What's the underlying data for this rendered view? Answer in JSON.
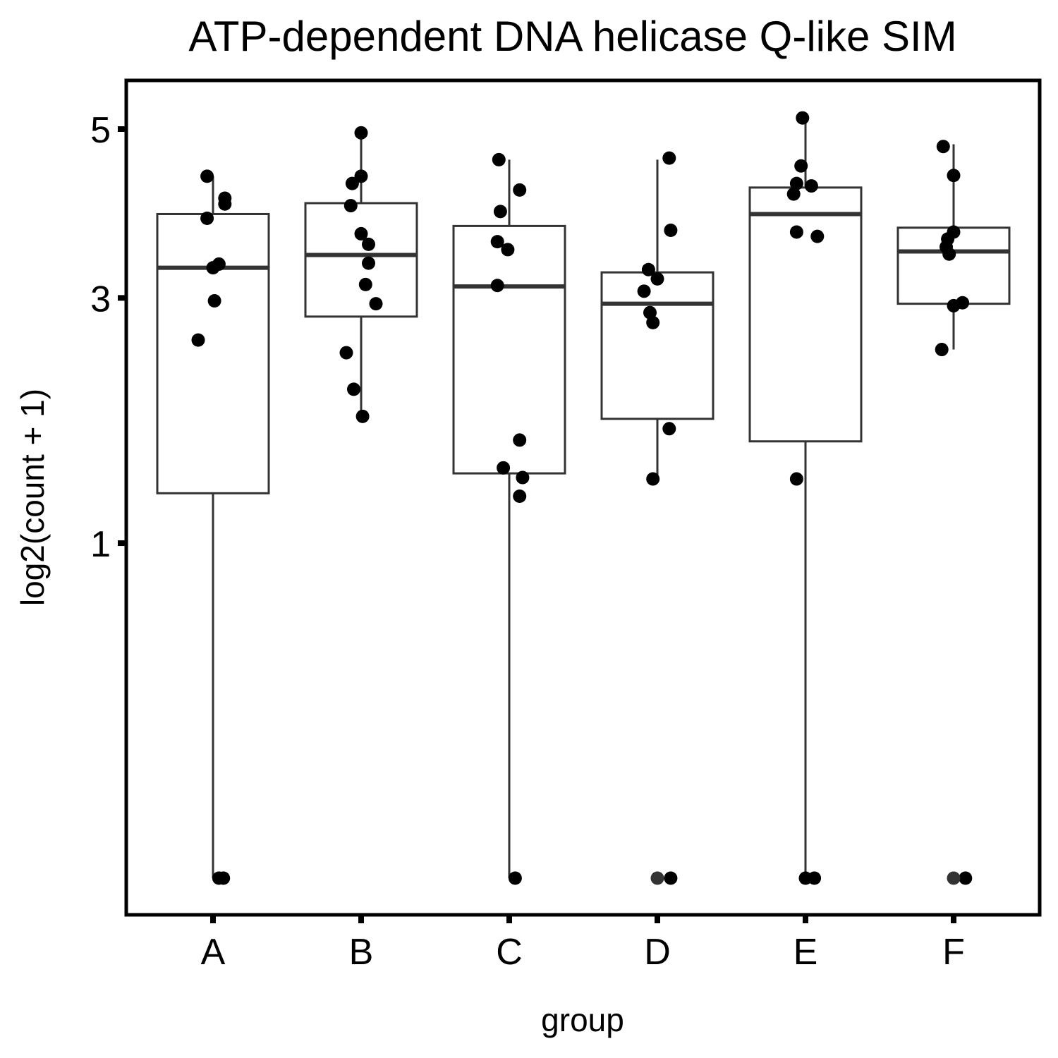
{
  "chart_data": {
    "type": "box",
    "title": "ATP-dependent DNA helicase Q-like SIM",
    "xlabel": "group",
    "ylabel": "log2(count + 1)",
    "y_scale": "sqrt",
    "ylim": [
      0.0,
      5.45
    ],
    "y_ticks": [
      1,
      3,
      5
    ],
    "categories": [
      "A",
      "B",
      "C",
      "D",
      "E",
      "F"
    ],
    "grid": false,
    "legend": "none",
    "colors": {
      "box_line": "#333333",
      "point": "#000000",
      "outlier": "#333333",
      "background": "#ffffff"
    },
    "boxes": [
      {
        "group": "A",
        "lower_whisker": 0.0,
        "q1": 1.32,
        "median": 3.32,
        "q3": 3.93,
        "upper_whisker": 4.39
      },
      {
        "group": "B",
        "lower_whisker": 1.9,
        "q1": 2.81,
        "median": 3.46,
        "q3": 4.06,
        "upper_whisker": 4.95
      },
      {
        "group": "C",
        "lower_whisker": 0.0,
        "q1": 1.46,
        "median": 3.12,
        "q3": 3.79,
        "upper_whisker": 4.6
      },
      {
        "group": "D",
        "lower_whisker": 1.4,
        "q1": 1.88,
        "median": 2.94,
        "q3": 3.27,
        "upper_whisker": 4.6
      },
      {
        "group": "E",
        "lower_whisker": 0.0,
        "q1": 1.7,
        "median": 3.93,
        "q3": 4.25,
        "upper_whisker": 5.15
      },
      {
        "group": "F",
        "lower_whisker": 2.49,
        "q1": 2.94,
        "median": 3.5,
        "q3": 3.77,
        "upper_whisker": 4.8
      }
    ],
    "points": [
      {
        "group": "A",
        "jitter": -0.04,
        "y": 4.39
      },
      {
        "group": "A",
        "jitter": 0.08,
        "y": 4.12
      },
      {
        "group": "A",
        "jitter": 0.08,
        "y": 4.05
      },
      {
        "group": "A",
        "jitter": -0.04,
        "y": 3.88
      },
      {
        "group": "A",
        "jitter": 0.04,
        "y": 3.36
      },
      {
        "group": "A",
        "jitter": 0.0,
        "y": 3.32
      },
      {
        "group": "A",
        "jitter": 0.01,
        "y": 2.97
      },
      {
        "group": "A",
        "jitter": -0.1,
        "y": 2.58
      },
      {
        "group": "A",
        "jitter": 0.04,
        "y": 0.0
      },
      {
        "group": "A",
        "jitter": 0.07,
        "y": 0.0
      },
      {
        "group": "B",
        "jitter": 0.0,
        "y": 4.95
      },
      {
        "group": "B",
        "jitter": 0.0,
        "y": 4.39
      },
      {
        "group": "B",
        "jitter": -0.06,
        "y": 4.3
      },
      {
        "group": "B",
        "jitter": -0.07,
        "y": 4.03
      },
      {
        "group": "B",
        "jitter": 0.0,
        "y": 3.7
      },
      {
        "group": "B",
        "jitter": 0.05,
        "y": 3.58
      },
      {
        "group": "B",
        "jitter": 0.05,
        "y": 3.37
      },
      {
        "group": "B",
        "jitter": 0.03,
        "y": 3.14
      },
      {
        "group": "B",
        "jitter": 0.1,
        "y": 2.94
      },
      {
        "group": "B",
        "jitter": -0.1,
        "y": 2.46
      },
      {
        "group": "B",
        "jitter": -0.05,
        "y": 2.13
      },
      {
        "group": "B",
        "jitter": 0.01,
        "y": 1.9
      },
      {
        "group": "C",
        "jitter": -0.07,
        "y": 4.6
      },
      {
        "group": "C",
        "jitter": 0.07,
        "y": 4.22
      },
      {
        "group": "C",
        "jitter": -0.06,
        "y": 3.96
      },
      {
        "group": "C",
        "jitter": -0.08,
        "y": 3.61
      },
      {
        "group": "C",
        "jitter": -0.01,
        "y": 3.52
      },
      {
        "group": "C",
        "jitter": -0.08,
        "y": 3.13
      },
      {
        "group": "C",
        "jitter": 0.07,
        "y": 1.71
      },
      {
        "group": "C",
        "jitter": -0.04,
        "y": 1.5
      },
      {
        "group": "C",
        "jitter": 0.09,
        "y": 1.43
      },
      {
        "group": "C",
        "jitter": 0.07,
        "y": 1.3
      },
      {
        "group": "C",
        "jitter": 0.04,
        "y": 0.0
      },
      {
        "group": "D",
        "jitter": 0.08,
        "y": 4.62
      },
      {
        "group": "D",
        "jitter": 0.09,
        "y": 3.74
      },
      {
        "group": "D",
        "jitter": -0.06,
        "y": 3.3
      },
      {
        "group": "D",
        "jitter": 0.0,
        "y": 3.2
      },
      {
        "group": "D",
        "jitter": -0.09,
        "y": 3.07
      },
      {
        "group": "D",
        "jitter": -0.05,
        "y": 2.85
      },
      {
        "group": "D",
        "jitter": -0.03,
        "y": 2.75
      },
      {
        "group": "D",
        "jitter": 0.08,
        "y": 1.8
      },
      {
        "group": "D",
        "jitter": -0.03,
        "y": 1.42
      },
      {
        "group": "D",
        "jitter": 0.09,
        "y": 0.0
      },
      {
        "group": "D",
        "jitter": 0.0,
        "y": 0.0,
        "outlier": true
      },
      {
        "group": "E",
        "jitter": -0.02,
        "y": 5.15
      },
      {
        "group": "E",
        "jitter": -0.03,
        "y": 4.52
      },
      {
        "group": "E",
        "jitter": -0.06,
        "y": 4.3
      },
      {
        "group": "E",
        "jitter": 0.04,
        "y": 4.27
      },
      {
        "group": "E",
        "jitter": -0.08,
        "y": 4.17
      },
      {
        "group": "E",
        "jitter": -0.06,
        "y": 3.72
      },
      {
        "group": "E",
        "jitter": 0.08,
        "y": 3.67
      },
      {
        "group": "E",
        "jitter": -0.06,
        "y": 1.42
      },
      {
        "group": "E",
        "jitter": 0.0,
        "y": 0.0
      },
      {
        "group": "E",
        "jitter": 0.06,
        "y": 0.0
      },
      {
        "group": "F",
        "jitter": -0.07,
        "y": 4.77
      },
      {
        "group": "F",
        "jitter": 0.0,
        "y": 4.4
      },
      {
        "group": "F",
        "jitter": 0.0,
        "y": 3.72
      },
      {
        "group": "F",
        "jitter": -0.04,
        "y": 3.64
      },
      {
        "group": "F",
        "jitter": -0.05,
        "y": 3.55
      },
      {
        "group": "F",
        "jitter": -0.03,
        "y": 3.47
      },
      {
        "group": "F",
        "jitter": 0.06,
        "y": 2.95
      },
      {
        "group": "F",
        "jitter": 0.0,
        "y": 2.92
      },
      {
        "group": "F",
        "jitter": -0.08,
        "y": 2.49
      },
      {
        "group": "F",
        "jitter": 0.08,
        "y": 0.0
      },
      {
        "group": "F",
        "jitter": 0.0,
        "y": 0.0,
        "outlier": true
      }
    ]
  }
}
